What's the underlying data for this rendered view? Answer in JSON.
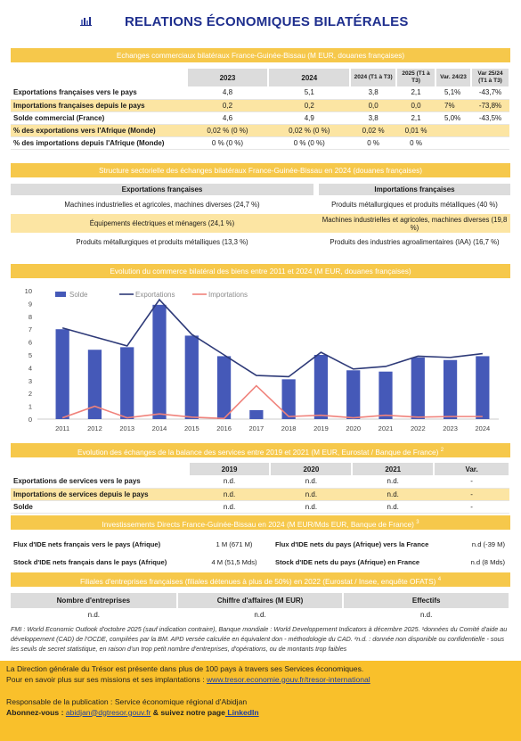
{
  "title": "RELATIONS ÉCONOMIQUES BILATÉRALES",
  "sections": {
    "trade": "Echanges commerciaux bilatéraux France-Guinée-Bissau (M EUR, douanes françaises)",
    "structure": "Structure sectorielle des échanges bilatéraux France-Guinée-Bissau en 2024 (douanes françaises)",
    "evolution": "Evolution du commerce bilatéral des biens entre 2011 et 2024 (M EUR, douanes françaises)",
    "services": "Evolution des échanges de la balance des services entre 2019 et 2021 (M EUR, Eurostat / Banque de France)",
    "services_sup": "2",
    "ide": "Investissements Directs France-Guinée-Bissau en 2024 (M EUR/Mds EUR, Banque de France)",
    "ide_sup": "3",
    "filiales": "Filiales d'entreprises françaises (filiales détenues à plus de 50%) en 2022 (Eurostat / Insee, enquête OFATS)",
    "filiales_sup": "4"
  },
  "trade_table": {
    "headers": [
      "",
      "2023",
      "2024",
      "2024 (T1 à T3)",
      "2025 (T1 à T3)",
      "Var. 24/23",
      "Var 25/24 (T1 à T3)"
    ],
    "rows": [
      {
        "label": "Exportations françaises vers le pays",
        "v": [
          "4,8",
          "5,1",
          "3,8",
          "2,1",
          "5,1%",
          "-43,7%"
        ]
      },
      {
        "label": "Importations françaises depuis le pays",
        "v": [
          "0,2",
          "0,2",
          "0,0",
          "0,0",
          "7%",
          "-73,8%"
        ]
      },
      {
        "label": "Solde commercial (France)",
        "v": [
          "4,6",
          "4,9",
          "3,8",
          "2,1",
          "5,0%",
          "-43,5%"
        ]
      },
      {
        "label": "% des exportations vers l'Afrique (Monde)",
        "v": [
          "0,02 % (0 %)",
          "0,02 % (0 %)",
          "0,02 %",
          "0,01 %",
          "",
          ""
        ]
      },
      {
        "label": "% des importations depuis l'Afrique (Monde)",
        "v": [
          "0 % (0 %)",
          "0 % (0 %)",
          "0 %",
          "0 %",
          "",
          ""
        ]
      }
    ]
  },
  "structure_table": {
    "exp_header": "Exportations françaises",
    "imp_header": "Importations françaises",
    "rows": [
      {
        "exp": "Machines industrielles et agricoles, machines diverses (24,7 %)",
        "imp": "Produits métallurgiques et produits métalliques (40 %)"
      },
      {
        "exp": "Équipements électriques et ménagers (24,1 %)",
        "imp": "Machines industrielles et agricoles, machines diverses (19,8 %)"
      },
      {
        "exp": "Produits métallurgiques et produits métalliques (13,3 %)",
        "imp": "Produits des industries agroalimentaires (IAA) (16,7 %)"
      }
    ]
  },
  "chart_data": {
    "type": "bar",
    "categories": [
      "2011",
      "2012",
      "2013",
      "2014",
      "2015",
      "2016",
      "2017",
      "2018",
      "2019",
      "2020",
      "2021",
      "2022",
      "2023",
      "2024"
    ],
    "ylim": [
      0,
      10
    ],
    "yticks": [
      "0",
      "1",
      "2",
      "3",
      "4",
      "5",
      "6",
      "7",
      "8",
      "9",
      "10"
    ],
    "legend_position": "top-left",
    "series": [
      {
        "name": "Solde",
        "kind": "bar",
        "color": "#4559b8",
        "values": [
          7.0,
          5.4,
          5.6,
          8.9,
          6.5,
          4.9,
          0.7,
          3.1,
          5.0,
          3.8,
          3.7,
          4.8,
          4.6,
          4.9
        ]
      },
      {
        "name": "Exportations",
        "kind": "line",
        "color": "#2e3a78",
        "values": [
          7.1,
          6.4,
          5.7,
          9.3,
          6.6,
          5.0,
          3.4,
          3.3,
          5.2,
          3.9,
          4.1,
          4.9,
          4.8,
          5.1
        ]
      },
      {
        "name": "Importations",
        "kind": "line",
        "color": "#f0827b",
        "values": [
          0.1,
          1.0,
          0.1,
          0.4,
          0.15,
          0.05,
          2.6,
          0.2,
          0.3,
          0.1,
          0.3,
          0.15,
          0.2,
          0.2
        ]
      }
    ]
  },
  "services_table": {
    "headers": [
      "",
      "2019",
      "2020",
      "2021",
      "Var."
    ],
    "rows": [
      {
        "label": "Exportations de services vers le pays",
        "v": [
          "n.d.",
          "n.d.",
          "n.d.",
          "-"
        ]
      },
      {
        "label": "Importations de services depuis le pays",
        "v": [
          "n.d.",
          "n.d.",
          "n.d.",
          "-"
        ]
      },
      {
        "label": "Solde",
        "v": [
          "n.d.",
          "n.d.",
          "n.d.",
          "-"
        ]
      }
    ]
  },
  "ide_table": {
    "rows": [
      {
        "l1": "Flux d'IDE nets français vers le pays (Afrique)",
        "v1": "1 M (671 M)",
        "l2": "Flux d'IDE nets du pays (Afrique) vers la France",
        "v2": "n.d (-39 M)"
      },
      {
        "l1": "Stock d'IDE nets français dans le pays (Afrique)",
        "v1": "4 M (51,5 Mds)",
        "l2": "Stock d'IDE nets du pays (Afrique) en France",
        "v2": "n.d (8 Mds)"
      }
    ]
  },
  "filiales_table": {
    "headers": [
      "Nombre d'entreprises",
      "Chiffre d'affaires (M EUR)",
      "Effectifs"
    ],
    "values": [
      "n.d.",
      "n.d.",
      "n.d."
    ]
  },
  "notes": "FMI : World Economic Outlook d'octobre 2025 (sauf indication contraire), Banque mondiale : World Developpement Indicators à décembre 2025. ¹données du Comité d'aide au développement (CAD) de l'OCDE, compilées par la BM. APD versée calculée en équivalent don - méthodologie du CAD. ²n.d. : donnée non disponible ou confidentielle - sous les seuils de secret statistique, en raison d'un trop petit nombre d'entreprises, d'opérations, ou de montants trop faibles",
  "footer": {
    "line1": "La Direction générale du Trésor est présente dans plus de 100 pays à travers ses Services économiques.",
    "line2_prefix": "Pour en savoir plus sur ses missions et ses implantations : ",
    "line2_link": "www.tresor.economie.gouv.fr/tresor-international",
    "resp": "Responsable de la publication : Service économique régional d'Abidjan",
    "subscribe_prefix": "Abonnez-vous : ",
    "subscribe_email": "abidjan@dgtresor.gouv.fr",
    "subscribe_mid": " & suivez notre page",
    "subscribe_link": " LinkedIn"
  },
  "colors": {
    "band": "#f6c84b",
    "highlight": "#fce5a3",
    "title": "#1f2f8e",
    "footer": "#f9c02b"
  }
}
